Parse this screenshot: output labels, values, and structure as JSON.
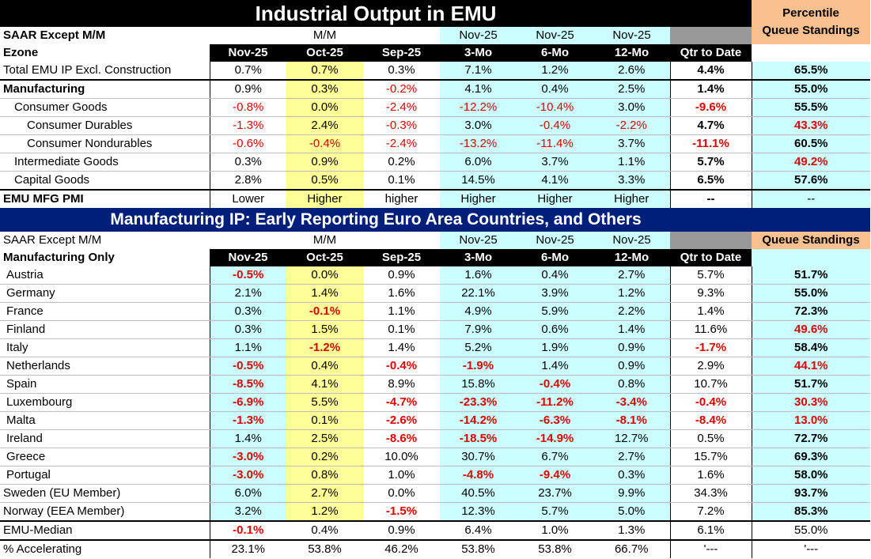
{
  "title": "Industrial Output in EMU",
  "percentile_header": [
    "Percentile",
    "Queue Standings"
  ],
  "top": {
    "subheader": {
      "label": "SAAR Except M/M",
      "mm": "M/M",
      "c3": "Nov-25",
      "c6": "Nov-25",
      "c12": "Nov-25"
    },
    "colheader": {
      "label": "Ezone",
      "cols": [
        "Nov-25",
        "Oct-25",
        "Sep-25",
        "3-Mo",
        "6-Mo",
        "12-Mo",
        "Qtr to Date"
      ]
    },
    "rows": [
      {
        "label": "Total EMU IP Excl. Construction",
        "indent": 0,
        "bold": false,
        "v": [
          "0.7%",
          "0.7%",
          "0.3%",
          "7.1%",
          "1.2%",
          "2.6%",
          "4.4%",
          "65.5%"
        ]
      },
      {
        "label": "Manufacturing",
        "indent": 0,
        "bold": true,
        "v": [
          "0.9%",
          "0.3%",
          "-0.2%",
          "4.1%",
          "0.4%",
          "2.5%",
          "1.4%",
          "55.0%"
        ]
      },
      {
        "label": "Consumer Goods",
        "indent": 1,
        "bold": false,
        "v": [
          "-0.8%",
          "0.0%",
          "-2.4%",
          "-12.2%",
          "-10.4%",
          "3.0%",
          "-9.6%",
          "55.5%"
        ]
      },
      {
        "label": "Consumer Durables",
        "indent": 2,
        "bold": false,
        "v": [
          "-1.3%",
          "2.4%",
          "-0.3%",
          "3.0%",
          "-0.4%",
          "-2.2%",
          "4.7%",
          "43.3%"
        ]
      },
      {
        "label": "Consumer Nondurables",
        "indent": 2,
        "bold": false,
        "v": [
          "-0.6%",
          "-0.4%",
          "-2.4%",
          "-13.2%",
          "-11.4%",
          "3.7%",
          "-11.1%",
          "60.5%"
        ]
      },
      {
        "label": "Intermediate Goods",
        "indent": 1,
        "bold": false,
        "v": [
          "0.3%",
          "0.9%",
          "0.2%",
          "6.0%",
          "3.7%",
          "1.1%",
          "5.7%",
          "49.2%"
        ]
      },
      {
        "label": "Capital Goods",
        "indent": 1,
        "bold": false,
        "v": [
          "2.8%",
          "0.5%",
          "0.1%",
          "14.5%",
          "4.1%",
          "3.3%",
          "6.5%",
          "57.6%"
        ]
      }
    ],
    "pmi": {
      "label": "EMU MFG PMI",
      "v": [
        "Lower",
        "Higher",
        "higher",
        "Higher",
        "Higher",
        "Higher",
        "--",
        "--"
      ]
    }
  },
  "banner": "Manufacturing IP: Early Reporting Euro Area Countries, and Others",
  "bottom": {
    "subheader": {
      "label": "SAAR Except M/M",
      "mm": "M/M",
      "c3": "Nov-25",
      "c6": "Nov-25",
      "c12": "Nov-25",
      "queue": "Queue Standings"
    },
    "colheader": {
      "label": "Manufacturing Only",
      "cols": [
        "Nov-25",
        "Oct-25",
        "Sep-25",
        "3-Mo",
        "6-Mo",
        "12-Mo",
        "Qtr to Date"
      ]
    },
    "rows": [
      {
        "label": "Austria",
        "v": [
          "-0.5%",
          "0.0%",
          "0.9%",
          "1.6%",
          "0.4%",
          "2.7%",
          "5.7%",
          "51.7%"
        ]
      },
      {
        "label": "Germany",
        "v": [
          "2.1%",
          "1.4%",
          "1.6%",
          "22.1%",
          "3.9%",
          "1.2%",
          "9.3%",
          "55.0%"
        ]
      },
      {
        "label": "France",
        "v": [
          "0.3%",
          "-0.1%",
          "1.1%",
          "4.9%",
          "5.9%",
          "2.2%",
          "1.4%",
          "72.3%"
        ]
      },
      {
        "label": "Finland",
        "v": [
          "0.3%",
          "1.5%",
          "0.1%",
          "7.9%",
          "0.6%",
          "1.4%",
          "11.6%",
          "49.6%"
        ]
      },
      {
        "label": "Italy",
        "v": [
          "1.1%",
          "-1.2%",
          "1.4%",
          "5.2%",
          "1.9%",
          "0.9%",
          "-1.7%",
          "58.4%"
        ]
      },
      {
        "label": "Netherlands",
        "v": [
          "-0.5%",
          "0.4%",
          "-0.4%",
          "-1.9%",
          "1.4%",
          "0.9%",
          "2.9%",
          "44.1%"
        ]
      },
      {
        "label": "Spain",
        "v": [
          "-8.5%",
          "4.1%",
          "8.9%",
          "15.8%",
          "-0.4%",
          "0.8%",
          "10.7%",
          "51.7%"
        ]
      },
      {
        "label": "Luxembourg",
        "v": [
          "-6.9%",
          "5.5%",
          "-4.7%",
          "-23.3%",
          "-11.2%",
          "-3.4%",
          "-0.4%",
          "30.3%"
        ]
      },
      {
        "label": "Malta",
        "v": [
          "-1.3%",
          "0.1%",
          "-2.6%",
          "-14.2%",
          "-6.3%",
          "-8.1%",
          "-8.4%",
          "13.0%"
        ]
      },
      {
        "label": "Ireland",
        "v": [
          "1.4%",
          "2.5%",
          "-8.6%",
          "-18.5%",
          "-14.9%",
          "12.7%",
          "0.5%",
          "72.7%"
        ]
      },
      {
        "label": "Greece",
        "v": [
          "-3.0%",
          "0.2%",
          "10.0%",
          "30.7%",
          "6.7%",
          "2.7%",
          "15.7%",
          "69.3%"
        ]
      },
      {
        "label": "Portugal",
        "v": [
          "-3.0%",
          "0.8%",
          "1.0%",
          "-4.8%",
          "-9.4%",
          "0.3%",
          "1.6%",
          "58.0%"
        ]
      },
      {
        "label": "Sweden (EU Member)",
        "v": [
          "6.0%",
          "2.7%",
          "0.0%",
          "40.5%",
          "23.7%",
          "9.9%",
          "34.3%",
          "93.7%"
        ]
      },
      {
        "label": "Norway (EEA Member)",
        "v": [
          "3.2%",
          "1.2%",
          "-1.5%",
          "12.3%",
          "5.7%",
          "5.0%",
          "7.2%",
          "85.3%"
        ]
      }
    ],
    "median": {
      "label": "EMU-Median",
      "v": [
        "-0.1%",
        "0.4%",
        "0.9%",
        "6.4%",
        "1.0%",
        "1.3%",
        "6.1%",
        "55.0%"
      ]
    },
    "accel": {
      "label": "% Accelerating",
      "v": [
        "23.1%",
        "53.8%",
        "46.2%",
        "53.8%",
        "53.8%",
        "66.7%",
        "'---",
        "'---"
      ]
    }
  },
  "colors": {
    "negative": "#e00000",
    "highlight_yellow": "#ffff99",
    "cyan": "#ccffff",
    "peach": "#fac090",
    "navy": "#001f7a",
    "gray": "#999999"
  }
}
